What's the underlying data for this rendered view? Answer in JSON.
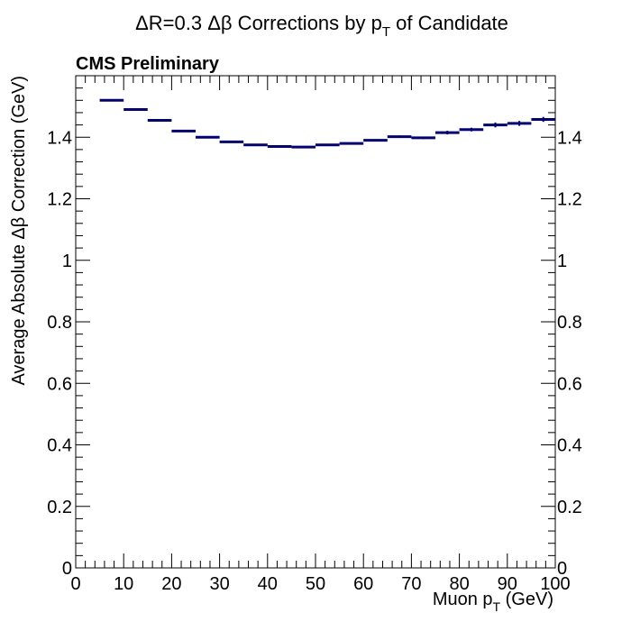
{
  "chart_data": {
    "type": "scatter",
    "title": {
      "prefix": "ΔR=0.3 Δβ Corrections by p",
      "sub": "T",
      "suffix": " of Candidate"
    },
    "annotation": "CMS Preliminary",
    "xlabel": {
      "prefix": "Muon p",
      "sub": "T",
      "suffix": " (GeV)"
    },
    "ylabel": "Average Absolute Δβ Correction (GeV)",
    "xlim": [
      0,
      100
    ],
    "ylim": [
      0,
      1.6
    ],
    "x_ticks": [
      0,
      10,
      20,
      30,
      40,
      50,
      60,
      70,
      80,
      90,
      100
    ],
    "y_ticks": [
      0,
      0.2,
      0.4,
      0.6,
      0.8,
      1,
      1.2,
      1.4
    ],
    "y_ticks_right": true,
    "grid": false,
    "series": [
      {
        "color": "#000080",
        "bin_width": 5,
        "points": [
          {
            "x": 7.5,
            "y": 1.52,
            "err": 0.003
          },
          {
            "x": 12.5,
            "y": 1.49,
            "err": 0.003
          },
          {
            "x": 17.5,
            "y": 1.455,
            "err": 0.003
          },
          {
            "x": 22.5,
            "y": 1.42,
            "err": 0.003
          },
          {
            "x": 27.5,
            "y": 1.4,
            "err": 0.003
          },
          {
            "x": 32.5,
            "y": 1.385,
            "err": 0.003
          },
          {
            "x": 37.5,
            "y": 1.375,
            "err": 0.003
          },
          {
            "x": 42.5,
            "y": 1.37,
            "err": 0.003
          },
          {
            "x": 47.5,
            "y": 1.368,
            "err": 0.003
          },
          {
            "x": 52.5,
            "y": 1.375,
            "err": 0.003
          },
          {
            "x": 57.5,
            "y": 1.38,
            "err": 0.003
          },
          {
            "x": 62.5,
            "y": 1.39,
            "err": 0.003
          },
          {
            "x": 67.5,
            "y": 1.402,
            "err": 0.004
          },
          {
            "x": 72.5,
            "y": 1.398,
            "err": 0.004
          },
          {
            "x": 77.5,
            "y": 1.415,
            "err": 0.006
          },
          {
            "x": 82.5,
            "y": 1.425,
            "err": 0.006
          },
          {
            "x": 87.5,
            "y": 1.44,
            "err": 0.008
          },
          {
            "x": 92.5,
            "y": 1.445,
            "err": 0.008
          },
          {
            "x": 97.5,
            "y": 1.458,
            "err": 0.008
          }
        ]
      }
    ]
  }
}
